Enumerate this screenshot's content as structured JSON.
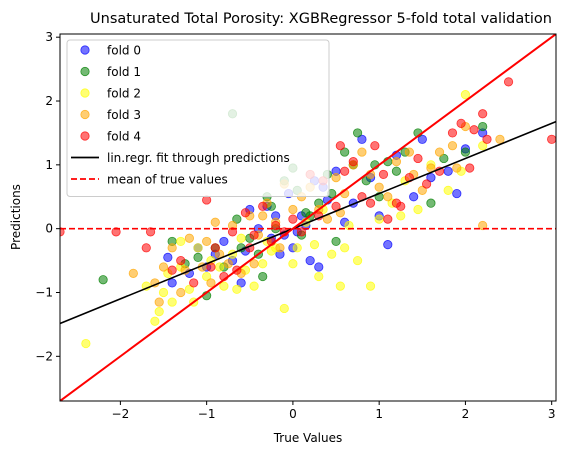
{
  "chart_data": {
    "type": "scatter",
    "title": "Unsaturated Total Porosity: XGBRegressor 5-fold total validation",
    "xlabel": "True Values",
    "ylabel": "Predictions",
    "xlim": [
      -2.7,
      3.05
    ],
    "ylim": [
      -2.7,
      3.05
    ],
    "xticks": [
      -2,
      -1,
      0,
      1,
      2,
      3
    ],
    "yticks": [
      -2,
      -1,
      0,
      1,
      2,
      3
    ],
    "grid": false,
    "legend_position": "top-left",
    "series": [
      {
        "name": "fold 0",
        "color": "#0000ff",
        "points": [
          [
            -1.45,
            -0.45
          ],
          [
            -1.4,
            -0.85
          ],
          [
            -1.2,
            -0.7
          ],
          [
            -1.1,
            -0.3
          ],
          [
            -1.0,
            -0.6
          ],
          [
            -0.9,
            -0.4
          ],
          [
            -0.8,
            -0.2
          ],
          [
            -0.7,
            -0.5
          ],
          [
            -0.6,
            -0.85
          ],
          [
            -0.55,
            -0.35
          ],
          [
            -0.4,
            0.0
          ],
          [
            -0.3,
            0.35
          ],
          [
            -0.2,
            0.2
          ],
          [
            -0.15,
            -0.4
          ],
          [
            -0.1,
            -0.1
          ],
          [
            -0.05,
            0.55
          ],
          [
            0.0,
            -0.3
          ],
          [
            0.05,
            -0.05
          ],
          [
            0.1,
            0.2
          ],
          [
            0.2,
            -0.5
          ],
          [
            0.25,
            0.75
          ],
          [
            0.3,
            -0.6
          ],
          [
            0.4,
            0.45
          ],
          [
            0.5,
            0.9
          ],
          [
            0.6,
            0.1
          ],
          [
            0.7,
            0.4
          ],
          [
            0.8,
            1.4
          ],
          [
            0.9,
            0.8
          ],
          [
            1.0,
            0.2
          ],
          [
            1.1,
            -0.25
          ],
          [
            1.2,
            1.15
          ],
          [
            1.4,
            0.5
          ],
          [
            1.5,
            1.4
          ],
          [
            1.6,
            0.8
          ],
          [
            1.8,
            0.9
          ],
          [
            1.9,
            0.55
          ],
          [
            2.0,
            1.25
          ],
          [
            2.2,
            1.5
          ],
          [
            -0.5,
            0.3
          ],
          [
            -0.25,
            -0.15
          ],
          [
            0.35,
            0.65
          ],
          [
            0.15,
            0.05
          ]
        ]
      },
      {
        "name": "fold 1",
        "color": "#008000",
        "points": [
          [
            -2.2,
            -0.8
          ],
          [
            -1.4,
            -0.2
          ],
          [
            -1.25,
            -0.55
          ],
          [
            -1.0,
            -1.05
          ],
          [
            -0.9,
            -0.3
          ],
          [
            -0.7,
            1.8
          ],
          [
            -0.65,
            0.15
          ],
          [
            -0.5,
            -0.15
          ],
          [
            -0.4,
            -0.4
          ],
          [
            -0.3,
            0.5
          ],
          [
            -0.25,
            0.35
          ],
          [
            -0.2,
            0.0
          ],
          [
            -0.1,
            0.75
          ],
          [
            0.0,
            0.95
          ],
          [
            0.05,
            0.6
          ],
          [
            0.1,
            -0.1
          ],
          [
            0.2,
            0.2
          ],
          [
            0.3,
            0.4
          ],
          [
            0.4,
            0.85
          ],
          [
            0.5,
            -0.2
          ],
          [
            0.6,
            1.2
          ],
          [
            0.7,
            1.0
          ],
          [
            0.75,
            1.5
          ],
          [
            0.85,
            0.75
          ],
          [
            0.95,
            1.0
          ],
          [
            1.0,
            0.5
          ],
          [
            1.2,
            0.9
          ],
          [
            1.3,
            1.2
          ],
          [
            1.45,
            1.5
          ],
          [
            1.6,
            0.4
          ],
          [
            1.75,
            1.1
          ],
          [
            2.0,
            1.2
          ],
          [
            2.2,
            1.6
          ],
          [
            -0.8,
            -0.6
          ],
          [
            -0.6,
            -0.3
          ],
          [
            -0.35,
            -0.75
          ],
          [
            0.15,
            0.25
          ],
          [
            -1.1,
            -0.45
          ],
          [
            1.1,
            1.05
          ],
          [
            0.45,
            0.55
          ]
        ]
      },
      {
        "name": "fold 2",
        "color": "#ffff00",
        "points": [
          [
            -2.4,
            -1.8
          ],
          [
            -1.6,
            -1.45
          ],
          [
            -1.55,
            -1.3
          ],
          [
            -1.5,
            -1.0
          ],
          [
            -1.45,
            -0.7
          ],
          [
            -1.4,
            -1.15
          ],
          [
            -1.3,
            -0.6
          ],
          [
            -1.2,
            -0.95
          ],
          [
            -1.15,
            -1.15
          ],
          [
            -1.1,
            -0.3
          ],
          [
            -1.0,
            -0.75
          ],
          [
            -0.95,
            -0.5
          ],
          [
            -0.85,
            -0.6
          ],
          [
            -0.8,
            -0.9
          ],
          [
            -0.7,
            -0.4
          ],
          [
            -0.6,
            -0.15
          ],
          [
            -0.55,
            -0.65
          ],
          [
            -0.45,
            -0.9
          ],
          [
            -0.35,
            -0.55
          ],
          [
            -0.3,
            -0.2
          ],
          [
            -0.2,
            -0.3
          ],
          [
            -0.1,
            -1.25
          ],
          [
            0.0,
            -0.55
          ],
          [
            0.05,
            -0.3
          ],
          [
            0.15,
            0.1
          ],
          [
            0.25,
            -0.25
          ],
          [
            0.35,
            0.3
          ],
          [
            0.45,
            -0.4
          ],
          [
            0.55,
            -0.9
          ],
          [
            0.65,
            0.05
          ],
          [
            0.75,
            -0.5
          ],
          [
            0.9,
            -0.9
          ],
          [
            1.0,
            0.15
          ],
          [
            1.15,
            0.4
          ],
          [
            1.3,
            0.75
          ],
          [
            1.45,
            0.3
          ],
          [
            1.6,
            1.0
          ],
          [
            1.8,
            0.6
          ],
          [
            1.95,
            0.9
          ],
          [
            2.0,
            2.1
          ],
          [
            2.2,
            1.3
          ],
          [
            -1.7,
            -0.9
          ],
          [
            -0.25,
            -0.35
          ],
          [
            0.3,
            -0.75
          ],
          [
            0.6,
            -0.3
          ],
          [
            1.25,
            0.2
          ],
          [
            -1.3,
            -0.2
          ],
          [
            -0.65,
            -0.95
          ]
        ]
      },
      {
        "name": "fold 3",
        "color": "#ffa500",
        "points": [
          [
            -1.85,
            -0.7
          ],
          [
            -1.6,
            -0.85
          ],
          [
            -1.55,
            -1.15
          ],
          [
            -1.5,
            -0.6
          ],
          [
            -1.4,
            -0.3
          ],
          [
            -1.3,
            -1.0
          ],
          [
            -1.25,
            -0.65
          ],
          [
            -1.2,
            -0.15
          ],
          [
            -1.0,
            -0.2
          ],
          [
            -0.95,
            -0.85
          ],
          [
            -0.9,
            0.1
          ],
          [
            -0.85,
            -0.4
          ],
          [
            -0.75,
            -0.55
          ],
          [
            -0.7,
            0.05
          ],
          [
            -0.6,
            -0.7
          ],
          [
            -0.5,
            0.2
          ],
          [
            -0.45,
            -0.55
          ],
          [
            -0.4,
            -0.1
          ],
          [
            -0.3,
            0.4
          ],
          [
            -0.2,
            0.1
          ],
          [
            -0.1,
            0.7
          ],
          [
            0.0,
            0.3
          ],
          [
            0.1,
            0.5
          ],
          [
            0.2,
            0.65
          ],
          [
            0.3,
            0.3
          ],
          [
            0.4,
            0.15
          ],
          [
            0.5,
            0.8
          ],
          [
            0.6,
            0.55
          ],
          [
            0.7,
            1.0
          ],
          [
            0.8,
            1.2
          ],
          [
            0.9,
            0.85
          ],
          [
            1.0,
            0.65
          ],
          [
            1.1,
            0.5
          ],
          [
            1.2,
            1.05
          ],
          [
            1.35,
            1.2
          ],
          [
            1.5,
            0.6
          ],
          [
            1.6,
            0.95
          ],
          [
            1.7,
            1.2
          ],
          [
            1.85,
            1.3
          ],
          [
            2.0,
            1.6
          ],
          [
            2.2,
            0.05
          ],
          [
            2.4,
            1.4
          ],
          [
            -0.15,
            -0.3
          ],
          [
            0.55,
            0.25
          ],
          [
            1.4,
            0.85
          ],
          [
            -0.35,
            0.2
          ],
          [
            1.9,
            0.95
          ],
          [
            -1.05,
            -0.6
          ]
        ]
      },
      {
        "name": "fold 4",
        "color": "#ff0000",
        "points": [
          [
            -2.7,
            -0.05
          ],
          [
            -2.05,
            -0.05
          ],
          [
            -1.7,
            -0.3
          ],
          [
            -1.65,
            -0.05
          ],
          [
            -1.4,
            -0.65
          ],
          [
            -1.3,
            -0.5
          ],
          [
            -1.0,
            0.45
          ],
          [
            -0.95,
            -0.6
          ],
          [
            -0.9,
            -0.3
          ],
          [
            -0.8,
            -0.75
          ],
          [
            -0.7,
            -0.05
          ],
          [
            -0.65,
            -0.65
          ],
          [
            -0.5,
            -0.3
          ],
          [
            -0.45,
            -0.1
          ],
          [
            -0.35,
            0.35
          ],
          [
            -0.25,
            -0.2
          ],
          [
            -0.2,
            0.05
          ],
          [
            -0.1,
            -0.05
          ],
          [
            0.0,
            0.15
          ],
          [
            0.1,
            -0.05
          ],
          [
            0.2,
            0.85
          ],
          [
            0.3,
            0.2
          ],
          [
            0.5,
            0.35
          ],
          [
            0.55,
            1.3
          ],
          [
            0.6,
            0.9
          ],
          [
            0.7,
            1.05
          ],
          [
            0.8,
            0.5
          ],
          [
            0.9,
            0.4
          ],
          [
            0.95,
            1.3
          ],
          [
            1.05,
            0.85
          ],
          [
            1.1,
            0.15
          ],
          [
            1.25,
            0.35
          ],
          [
            1.35,
            0.8
          ],
          [
            1.45,
            1.1
          ],
          [
            1.55,
            0.7
          ],
          [
            1.7,
            0.9
          ],
          [
            1.85,
            1.5
          ],
          [
            1.95,
            1.65
          ],
          [
            2.05,
            0.95
          ],
          [
            2.1,
            1.55
          ],
          [
            2.2,
            1.8
          ],
          [
            2.25,
            1.4
          ],
          [
            2.5,
            2.3
          ],
          [
            3.0,
            1.4
          ],
          [
            -0.55,
            0.25
          ],
          [
            0.35,
            0.75
          ],
          [
            1.2,
            0.4
          ],
          [
            -1.15,
            -0.85
          ]
        ]
      }
    ],
    "lines": [
      {
        "name": "lin.regr. fit through predictions",
        "color": "#000000",
        "style": "solid",
        "slope": 0.55,
        "intercept": 0.0
      },
      {
        "name": "mean of true values",
        "color": "#ff0000",
        "style": "dashed",
        "slope": 0.0,
        "intercept": 0.0
      },
      {
        "name": "",
        "color": "#ff0000",
        "style": "solid",
        "slope": 1.0,
        "intercept": 0.0
      }
    ]
  }
}
